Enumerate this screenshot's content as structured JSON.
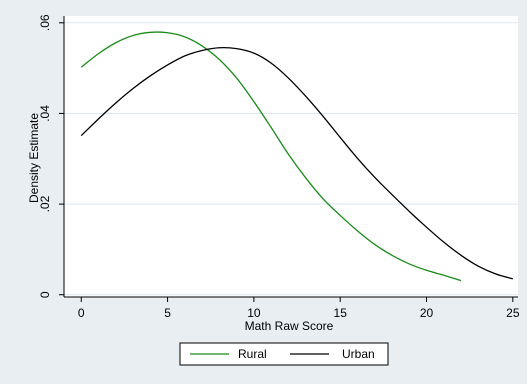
{
  "chart_data": {
    "type": "line",
    "xlabel": "Math Raw Score",
    "ylabel": "Density Estimate",
    "xlim": [
      -1,
      25.3
    ],
    "ylim": [
      -0.0005,
      0.0615
    ],
    "x_ticks": [
      0,
      5,
      10,
      15,
      20,
      25
    ],
    "x_tick_labels": [
      "0",
      "5",
      "10",
      "15",
      "20",
      "25"
    ],
    "y_ticks": [
      0,
      0.02,
      0.04,
      0.06
    ],
    "y_tick_labels": [
      "0",
      ".02",
      ".04",
      ".06"
    ],
    "grid": "horizontal",
    "legend_position": "bottom",
    "series": [
      {
        "name": "Rural",
        "color": "#1a8c1a",
        "x": [
          0,
          1,
          2,
          3,
          4,
          5,
          6,
          7,
          8,
          9,
          10,
          11,
          12,
          13,
          14,
          15,
          16,
          17,
          18,
          19,
          20,
          21,
          22
        ],
        "y": [
          0.0502,
          0.0532,
          0.0556,
          0.0572,
          0.0579,
          0.0578,
          0.0569,
          0.0549,
          0.0519,
          0.0478,
          0.0426,
          0.0369,
          0.031,
          0.0258,
          0.0212,
          0.0175,
          0.0141,
          0.0111,
          0.0087,
          0.0068,
          0.0054,
          0.0043,
          0.0031
        ]
      },
      {
        "name": "Urban",
        "color": "#000000",
        "x": [
          0,
          1,
          2,
          3,
          4,
          5,
          6,
          7,
          8,
          9,
          10,
          11,
          12,
          13,
          14,
          15,
          16,
          17,
          18,
          19,
          20,
          21,
          22,
          23,
          24,
          25
        ],
        "y": [
          0.0351,
          0.0388,
          0.0423,
          0.0455,
          0.0483,
          0.0507,
          0.0527,
          0.0539,
          0.0545,
          0.0543,
          0.0533,
          0.0511,
          0.0478,
          0.0438,
          0.0394,
          0.0347,
          0.0301,
          0.0259,
          0.0221,
          0.0184,
          0.0149,
          0.0116,
          0.0087,
          0.0063,
          0.0046,
          0.0035
        ]
      }
    ]
  },
  "colors": {
    "background": "#e8eef2",
    "plot_area": "#ffffff",
    "gridline": "#dfe8ed"
  }
}
